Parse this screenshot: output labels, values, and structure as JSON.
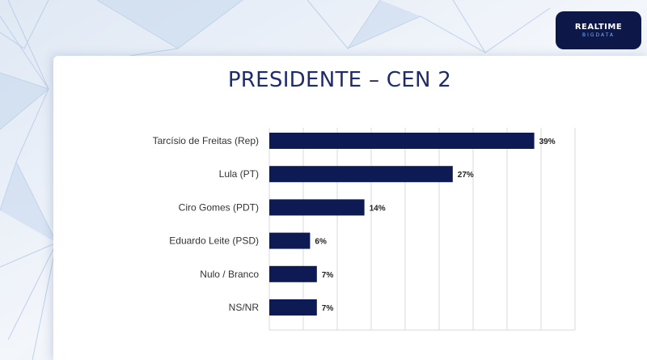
{
  "logo": {
    "line1": "REALTIME",
    "line2": "BIGDATA"
  },
  "colors": {
    "bar": "#0d1a54",
    "panel": "#ffffff",
    "grid": "#d9d9d9",
    "text": "#333333",
    "title": "#1f2b6b",
    "logo_bg": "#0d1748"
  },
  "chart_data": {
    "type": "bar",
    "orientation": "horizontal",
    "title": "PRESIDENTE – CEN 2",
    "categories": [
      "Tarcísio de Freitas (Rep)",
      "Lula (PT)",
      "Ciro Gomes (PDT)",
      "Eduardo Leite (PSD)",
      "Nulo / Branco",
      "NS/NR"
    ],
    "values": [
      39,
      27,
      14,
      6,
      7,
      7
    ],
    "value_labels": [
      "39%",
      "27%",
      "14%",
      "6%",
      "7%",
      "7%"
    ],
    "xlim": [
      0,
      45
    ],
    "grid": true,
    "legend": "none"
  }
}
